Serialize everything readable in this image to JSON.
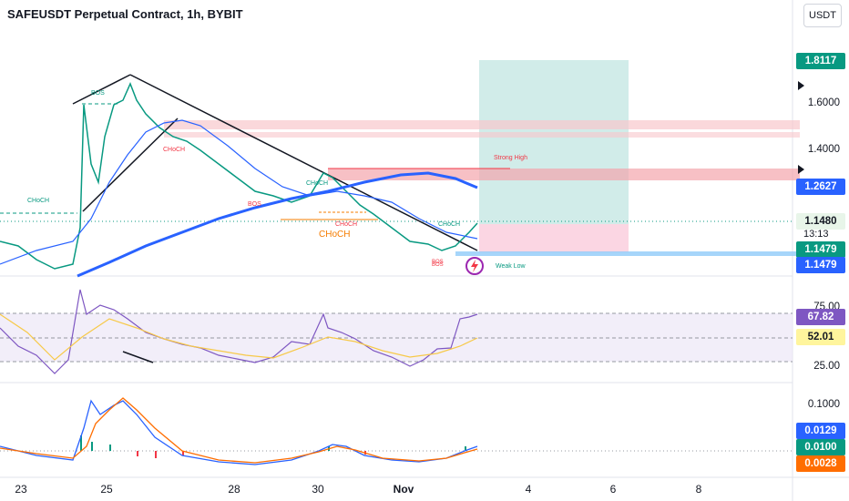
{
  "header": {
    "title": "SAFEUSDT Perpetual Contract, 1h, BYBIT"
  },
  "currency_button": {
    "label": "USDT"
  },
  "price_axis": {
    "ticks": [
      "1.6000",
      "1.4000"
    ],
    "badges": {
      "target": "1.8117",
      "level_blue": "1.2627",
      "last_price": "1.1480",
      "countdown": "13:13",
      "ema": "1.1479",
      "stop": "1.1479"
    }
  },
  "rsi_axis": {
    "ticks": [
      "75.00",
      "25.00"
    ],
    "rsi_value": "67.82",
    "ma_value": "52.01"
  },
  "macd_axis": {
    "tick": "0.1000",
    "macd_value": "0.0129",
    "signal_value": "0.0100",
    "hist_value": "0.0028"
  },
  "time_axis": {
    "labels": [
      "23",
      "25",
      "28",
      "30",
      "Nov",
      "4",
      "6",
      "8"
    ]
  },
  "annotations": {
    "bos_top": "BOS",
    "choch_left": "CHoCH",
    "choch_1": "CHoCH",
    "bos_mid": "BOS",
    "choch_2": "CHoCH",
    "choch_3": "CHoCH",
    "choch_big": "CHoCH",
    "choch_4": "CHoCH",
    "strong_high": "Strong High",
    "weak_low": "Weak Low",
    "bos_bottom_1": "BOS",
    "bos_bottom_2": "BOS"
  },
  "colors": {
    "green": "#089981",
    "red": "#f23645",
    "blue": "#2962ff",
    "purple": "#7e57c2",
    "yellow": "#f7d34a",
    "orange": "#ff6d00"
  }
}
